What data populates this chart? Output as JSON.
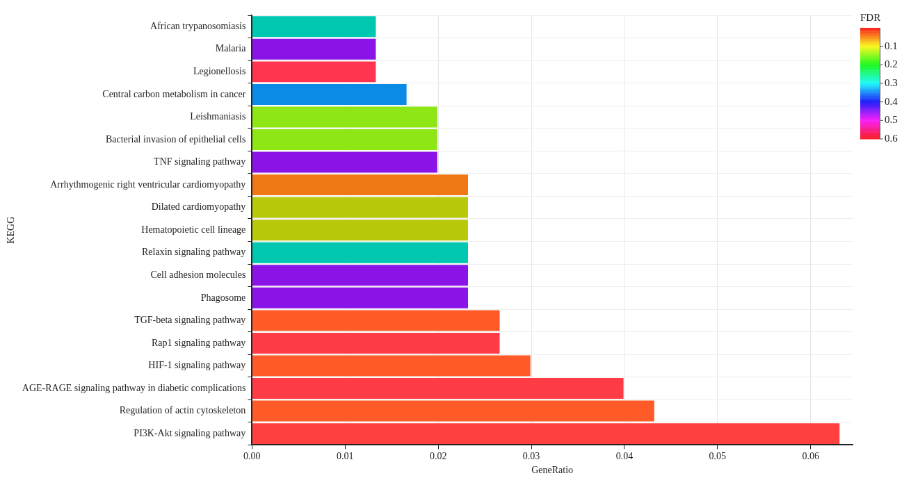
{
  "chart_data": {
    "type": "bar",
    "orientation": "horizontal",
    "xlabel": "GeneRatio",
    "ylabel": "KEGG",
    "clabel": "FDR",
    "clim": [
      0,
      0.6
    ],
    "cticks": [
      0.1,
      0.2,
      0.3,
      0.4,
      0.5,
      0.6
    ],
    "categories": [
      "African trypanosomiasis",
      "Malaria",
      "Legionellosis",
      "Central carbon metabolism in cancer",
      "Leishmaniasis",
      "Bacterial invasion of epithelial cells",
      "TNF signaling pathway",
      "Arrhythmogenic right ventricular cardiomyopathy",
      "Dilated cardiomyopathy",
      "Hematopoietic cell lineage",
      "Relaxin signaling pathway",
      "Cell adhesion molecules",
      "Phagosome",
      "TGF-beta signaling pathway",
      "Rap1 signaling pathway",
      "HIF-1 signaling pathway",
      "AGE-RAGE signaling pathway in diabetic complications",
      "Regulation of actin cytoskeleton",
      "PI3K-Akt signaling pathway"
    ],
    "values": [
      0.0133,
      0.0133,
      0.0133,
      0.0166,
      0.0199,
      0.0199,
      0.0199,
      0.0232,
      0.0232,
      0.0232,
      0.0232,
      0.0232,
      0.0232,
      0.0266,
      0.0266,
      0.0299,
      0.0399,
      0.0432,
      0.0631
    ],
    "colors": [
      "#00c8b0",
      "#8a14e8",
      "#ff3450",
      "#0a8ce6",
      "#8ee614",
      "#8ee614",
      "#8a14e8",
      "#f07814",
      "#b8c80a",
      "#b8c80a",
      "#00c8b0",
      "#8a14e8",
      "#8a14e8",
      "#ff5a28",
      "#ff3c46",
      "#ff5a28",
      "#ff3c46",
      "#ff5a28",
      "#ff4040"
    ],
    "xlim": [
      0,
      0.0645
    ],
    "xticks": [
      {
        "value": 0,
        "label": "0.00"
      },
      {
        "value": 0.01,
        "label": "0.01"
      },
      {
        "value": 0.02,
        "label": "0.02"
      },
      {
        "value": 0.03,
        "label": "0.03"
      },
      {
        "value": 0.04,
        "label": "0.04"
      },
      {
        "value": 0.05,
        "label": "0.05"
      },
      {
        "value": 0.06,
        "label": "0.06"
      }
    ],
    "grid": true,
    "legend": false
  }
}
